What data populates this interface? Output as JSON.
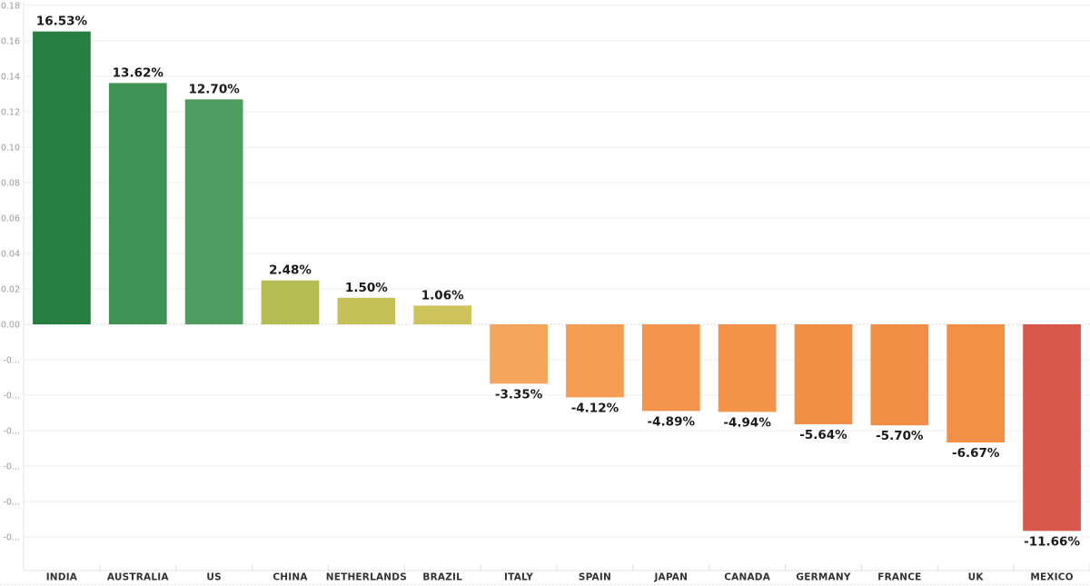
{
  "chart_data": {
    "type": "bar",
    "title": "",
    "xlabel": "",
    "ylabel": "",
    "legend": false,
    "grid": true,
    "background": "#ffffff",
    "categories": [
      "INDIA",
      "AUSTRALIA",
      "US",
      "CHINA",
      "NETHERLANDS",
      "BRAZIL",
      "ITALY",
      "SPAIN",
      "JAPAN",
      "CANADA",
      "GERMANY",
      "FRANCE",
      "UK",
      "MEXICO"
    ],
    "values": [
      16.53,
      13.62,
      12.7,
      2.48,
      1.5,
      1.06,
      -3.35,
      -4.12,
      -4.89,
      -4.94,
      -5.64,
      -5.7,
      -6.67,
      -11.66
    ],
    "value_labels": [
      "16.53%",
      "13.62%",
      "12.70%",
      "2.48%",
      "1.50%",
      "1.06%",
      "-3.35%",
      "-4.12%",
      "-4.89%",
      "-4.94%",
      "-5.64%",
      "-5.70%",
      "-6.67%",
      "-11.66%"
    ],
    "bar_colors": [
      "#277e42",
      "#3f9355",
      "#4f9d61",
      "#b5bd52",
      "#c3c158",
      "#cec25d",
      "#f5a55c",
      "#f49c52",
      "#f3954c",
      "#f39349",
      "#f28f46",
      "#f28e45",
      "#f39048",
      "#d8584b"
    ],
    "y_axis": {
      "ylim": [
        -0.139,
        0.18
      ],
      "tick_step": 0.02,
      "tick_values": [
        0.18,
        0.16,
        0.14,
        0.12,
        0.1,
        0.08,
        0.06,
        0.04,
        0.02,
        0.0,
        -0.02,
        -0.04,
        -0.06,
        -0.08,
        -0.1,
        -0.12
      ],
      "tick_labels": [
        "0.18",
        "0.16",
        "0.14",
        "0.12",
        "0.10",
        "0.08",
        "0.06",
        "0.04",
        "0.02",
        "0.00",
        "-0...",
        "-0...",
        "-0...",
        "-0...",
        "-0...",
        "-0..."
      ]
    },
    "colors": {
      "gridline": "#efefef",
      "zero_line_dotted": "#c9c9c9",
      "axis_line": "#e3e3e3",
      "axis_tick": "#dcdcdc",
      "bottom_dotted_line": "#cccccc",
      "y_tick_label": "#9a9a9a",
      "value_label": "#1a1a1a",
      "category_label": "#333333"
    }
  }
}
